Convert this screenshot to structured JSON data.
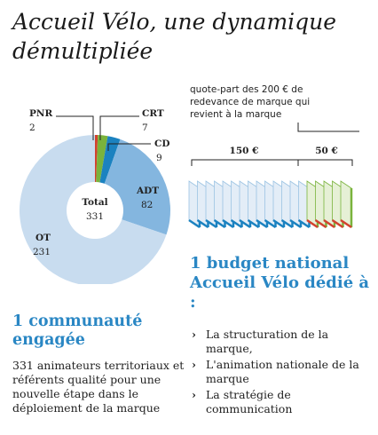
{
  "title": "Accueil Vélo, une dynamique démultipliée",
  "chart_data": {
    "type": "pie",
    "center_label": "Total",
    "total": "331",
    "slices": [
      {
        "label": "PNR",
        "value": 2,
        "color": "#d2422f"
      },
      {
        "label": "CRT",
        "value": 7,
        "color": "#7ab33c"
      },
      {
        "label": "CD",
        "value": 9,
        "color": "#1b82c0"
      },
      {
        "label": "ADT",
        "value": 82,
        "color": "#84b6df"
      },
      {
        "label": "OT",
        "value": 231,
        "color": "#c8dcef"
      }
    ]
  },
  "left": {
    "heading": "1 communauté engagée",
    "text": "331 animateurs territoriaux et référents qualité pour une nouvelle étape dans le déploiement de la marque"
  },
  "budget": {
    "note": "quote-part des 200 € de redevance de marque qui revient à la marque",
    "amounts": [
      "150 €",
      "50 €"
    ],
    "card_colors": {
      "blue": "#1b82c0",
      "green": "#7ab33c",
      "red": "#d2422f"
    },
    "heading": "1 budget national Accueil Vélo dédié à :",
    "items": [
      "La structuration de la marque,",
      "L'animation nationale de la marque",
      "La stratégie de communication"
    ]
  }
}
